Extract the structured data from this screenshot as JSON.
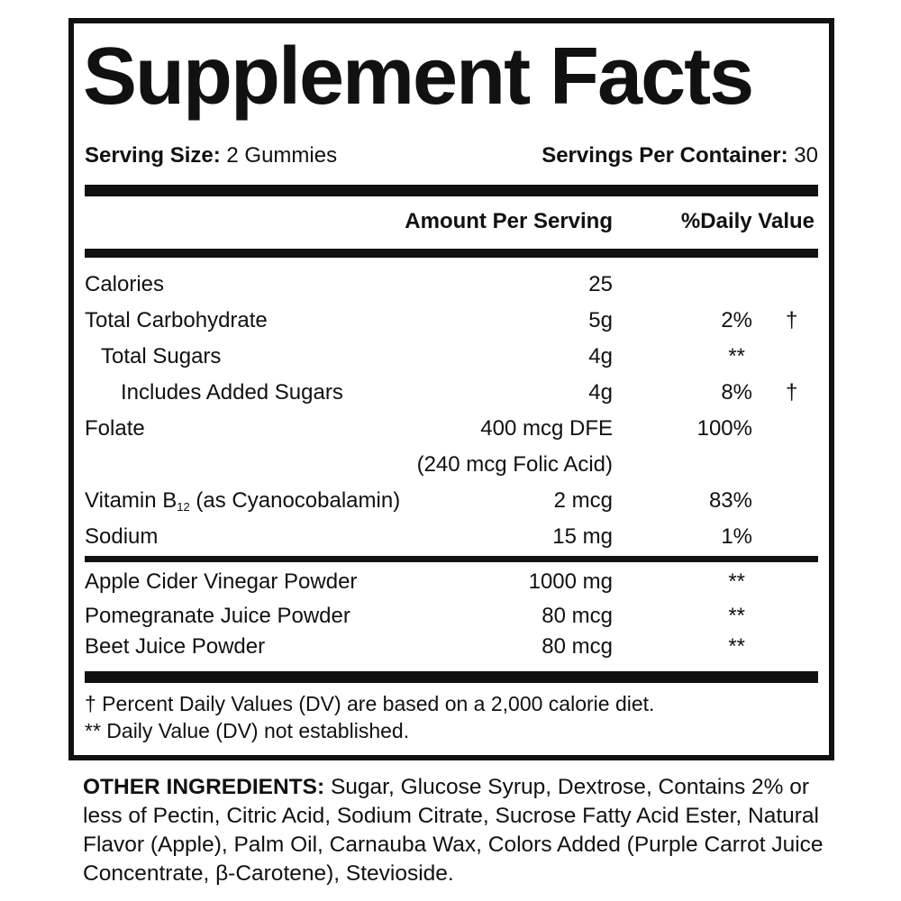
{
  "title": "Supplement Facts",
  "serving_size": {
    "label": "Serving Size:",
    "value": "2 Gummies"
  },
  "servings_per_container": {
    "label": "Servings Per Container:",
    "value": "30"
  },
  "header": {
    "amount": "Amount Per Serving",
    "dv": "%Daily Value"
  },
  "nutrients": [
    {
      "name": "Calories",
      "amount": "25",
      "dv": "",
      "mark": ""
    },
    {
      "name": "Total Carbohydrate",
      "amount": "5g",
      "dv": "2%",
      "mark": "†"
    },
    {
      "name": "Total Sugars",
      "amount": "4g",
      "dv": "**",
      "mark": ""
    },
    {
      "name": "Includes Added Sugars",
      "amount": "4g",
      "dv": "8%",
      "mark": "†"
    },
    {
      "name": "Folate",
      "amount": "400 mcg DFE",
      "dv": "100%",
      "mark": "",
      "sub_amount": "(240 mcg Folic Acid)"
    },
    {
      "name": "Vitamin B",
      "name_sub": "12",
      "name_suffix": " (as Cyanocobalamin)",
      "amount": "2 mcg",
      "dv": "83%",
      "mark": ""
    },
    {
      "name": "Sodium",
      "amount": "15 mg",
      "dv": "1%",
      "mark": ""
    }
  ],
  "other_actives": [
    {
      "name": "Apple Cider Vinegar Powder",
      "amount": "1000 mg",
      "dv": "**"
    },
    {
      "name": "Pomegranate Juice Powder",
      "amount": "80 mcg",
      "dv": "**"
    },
    {
      "name": "Beet Juice Powder",
      "amount": "80 mcg",
      "dv": "**"
    }
  ],
  "footnotes": [
    "† Percent Daily Values (DV) are based on a 2,000 calorie diet.",
    "** Daily Value (DV) not established."
  ],
  "other_ingredients": {
    "label": "OTHER INGREDIENTS:",
    "text": " Sugar, Glucose Syrup, Dextrose, Contains 2% or less of Pectin, Citric Acid, Sodium Citrate, Sucrose Fatty Acid Ester, Natural Flavor (Apple), Palm Oil, Carnauba Wax, Colors Added (Purple Carrot Juice Concentrate, β-Carotene), Stevioside."
  }
}
